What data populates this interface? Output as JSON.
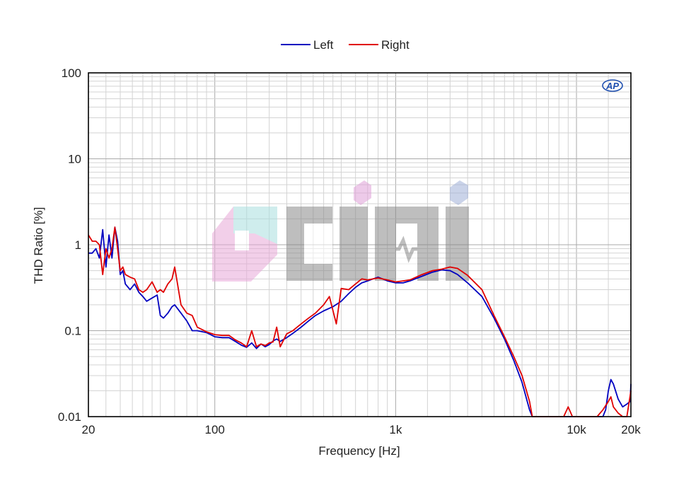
{
  "chart_data": {
    "type": "line",
    "title": "",
    "xlabel": "Frequency [Hz]",
    "ylabel": "THD Ratio [%]",
    "x_scale": "log",
    "y_scale": "log",
    "xlim": [
      20,
      20000
    ],
    "ylim": [
      0.01,
      100
    ],
    "x_ticks": [
      {
        "value": 20,
        "label": "20"
      },
      {
        "value": 100,
        "label": "100"
      },
      {
        "value": 1000,
        "label": "1k"
      },
      {
        "value": 10000,
        "label": "10k"
      },
      {
        "value": 20000,
        "label": "20k"
      }
    ],
    "y_ticks": [
      {
        "value": 100,
        "label": "100"
      },
      {
        "value": 10,
        "label": "10"
      },
      {
        "value": 1,
        "label": "1"
      },
      {
        "value": 0.1,
        "label": "0.1"
      },
      {
        "value": 0.01,
        "label": "0.01"
      }
    ],
    "grid": true,
    "legend_position": "top-center",
    "logo_text": "AP",
    "series": [
      {
        "name": "Left",
        "color": "#0000c0",
        "points": [
          [
            20,
            0.8
          ],
          [
            21,
            0.8
          ],
          [
            22,
            0.9
          ],
          [
            23,
            0.7
          ],
          [
            24,
            1.5
          ],
          [
            25,
            0.55
          ],
          [
            26,
            1.3
          ],
          [
            27,
            0.7
          ],
          [
            28,
            1.6
          ],
          [
            29,
            1.1
          ],
          [
            30,
            0.45
          ],
          [
            31,
            0.5
          ],
          [
            32,
            0.35
          ],
          [
            34,
            0.3
          ],
          [
            36,
            0.35
          ],
          [
            38,
            0.28
          ],
          [
            40,
            0.25
          ],
          [
            42,
            0.22
          ],
          [
            45,
            0.24
          ],
          [
            48,
            0.26
          ],
          [
            50,
            0.15
          ],
          [
            52,
            0.14
          ],
          [
            55,
            0.16
          ],
          [
            58,
            0.19
          ],
          [
            60,
            0.2
          ],
          [
            65,
            0.16
          ],
          [
            70,
            0.13
          ],
          [
            75,
            0.1
          ],
          [
            80,
            0.1
          ],
          [
            90,
            0.095
          ],
          [
            100,
            0.085
          ],
          [
            110,
            0.083
          ],
          [
            120,
            0.083
          ],
          [
            130,
            0.075
          ],
          [
            140,
            0.068
          ],
          [
            150,
            0.064
          ],
          [
            160,
            0.072
          ],
          [
            170,
            0.062
          ],
          [
            180,
            0.07
          ],
          [
            190,
            0.065
          ],
          [
            200,
            0.069
          ],
          [
            210,
            0.076
          ],
          [
            220,
            0.08
          ],
          [
            230,
            0.075
          ],
          [
            250,
            0.083
          ],
          [
            270,
            0.093
          ],
          [
            300,
            0.11
          ],
          [
            330,
            0.13
          ],
          [
            360,
            0.15
          ],
          [
            400,
            0.17
          ],
          [
            450,
            0.19
          ],
          [
            500,
            0.22
          ],
          [
            550,
            0.27
          ],
          [
            600,
            0.32
          ],
          [
            650,
            0.36
          ],
          [
            700,
            0.38
          ],
          [
            750,
            0.4
          ],
          [
            800,
            0.42
          ],
          [
            900,
            0.38
          ],
          [
            1000,
            0.36
          ],
          [
            1100,
            0.36
          ],
          [
            1200,
            0.38
          ],
          [
            1400,
            0.43
          ],
          [
            1600,
            0.48
          ],
          [
            1800,
            0.51
          ],
          [
            2000,
            0.5
          ],
          [
            2200,
            0.45
          ],
          [
            2500,
            0.36
          ],
          [
            3000,
            0.25
          ],
          [
            3500,
            0.14
          ],
          [
            4000,
            0.08
          ],
          [
            4500,
            0.045
          ],
          [
            5000,
            0.025
          ],
          [
            5500,
            0.012
          ],
          [
            5700,
            0.008
          ],
          [
            14000,
            0.008
          ],
          [
            14500,
            0.012
          ],
          [
            15000,
            0.02
          ],
          [
            15500,
            0.027
          ],
          [
            16000,
            0.024
          ],
          [
            17000,
            0.016
          ],
          [
            18000,
            0.013
          ],
          [
            19000,
            0.014
          ],
          [
            19800,
            0.015
          ],
          [
            20000,
            0.024
          ]
        ]
      },
      {
        "name": "Right",
        "color": "#e00000",
        "points": [
          [
            20,
            1.3
          ],
          [
            21,
            1.1
          ],
          [
            22,
            1.1
          ],
          [
            23,
            1.0
          ],
          [
            24,
            0.45
          ],
          [
            25,
            0.9
          ],
          [
            26,
            0.7
          ],
          [
            27,
            0.9
          ],
          [
            28,
            1.6
          ],
          [
            29,
            0.9
          ],
          [
            30,
            0.5
          ],
          [
            31,
            0.55
          ],
          [
            32,
            0.45
          ],
          [
            34,
            0.42
          ],
          [
            36,
            0.4
          ],
          [
            38,
            0.3
          ],
          [
            40,
            0.28
          ],
          [
            42,
            0.3
          ],
          [
            45,
            0.37
          ],
          [
            48,
            0.28
          ],
          [
            50,
            0.3
          ],
          [
            52,
            0.28
          ],
          [
            55,
            0.35
          ],
          [
            58,
            0.4
          ],
          [
            60,
            0.55
          ],
          [
            65,
            0.2
          ],
          [
            70,
            0.16
          ],
          [
            75,
            0.15
          ],
          [
            80,
            0.11
          ],
          [
            90,
            0.097
          ],
          [
            100,
            0.09
          ],
          [
            110,
            0.088
          ],
          [
            120,
            0.088
          ],
          [
            130,
            0.078
          ],
          [
            140,
            0.072
          ],
          [
            150,
            0.065
          ],
          [
            160,
            0.1
          ],
          [
            170,
            0.065
          ],
          [
            180,
            0.07
          ],
          [
            190,
            0.067
          ],
          [
            200,
            0.072
          ],
          [
            210,
            0.074
          ],
          [
            220,
            0.11
          ],
          [
            230,
            0.065
          ],
          [
            250,
            0.092
          ],
          [
            270,
            0.1
          ],
          [
            300,
            0.12
          ],
          [
            330,
            0.14
          ],
          [
            360,
            0.16
          ],
          [
            400,
            0.2
          ],
          [
            430,
            0.25
          ],
          [
            470,
            0.12
          ],
          [
            500,
            0.31
          ],
          [
            550,
            0.3
          ],
          [
            600,
            0.35
          ],
          [
            650,
            0.4
          ],
          [
            700,
            0.39
          ],
          [
            750,
            0.4
          ],
          [
            800,
            0.41
          ],
          [
            900,
            0.39
          ],
          [
            1000,
            0.37
          ],
          [
            1100,
            0.38
          ],
          [
            1200,
            0.39
          ],
          [
            1400,
            0.45
          ],
          [
            1600,
            0.5
          ],
          [
            1800,
            0.52
          ],
          [
            2000,
            0.55
          ],
          [
            2200,
            0.53
          ],
          [
            2500,
            0.44
          ],
          [
            3000,
            0.3
          ],
          [
            3500,
            0.15
          ],
          [
            4000,
            0.085
          ],
          [
            4500,
            0.05
          ],
          [
            5000,
            0.03
          ],
          [
            5500,
            0.015
          ],
          [
            5700,
            0.009
          ],
          [
            8500,
            0.008
          ],
          [
            9000,
            0.013
          ],
          [
            9500,
            0.009
          ],
          [
            13000,
            0.008
          ],
          [
            14000,
            0.012
          ],
          [
            15000,
            0.015
          ],
          [
            15500,
            0.017
          ],
          [
            16000,
            0.013
          ],
          [
            17000,
            0.011
          ],
          [
            18000,
            0.009
          ],
          [
            19000,
            0.009
          ],
          [
            20000,
            0.02
          ]
        ]
      }
    ]
  }
}
